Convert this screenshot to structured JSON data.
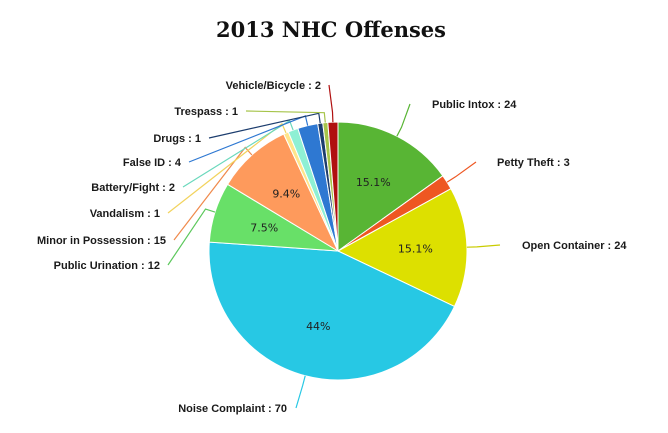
{
  "chart_data": {
    "type": "pie",
    "title": "2013 NHC Offenses",
    "slices": [
      {
        "label": "Public Intox",
        "value": 24,
        "pct_label": "15.1%",
        "color": "#58b534",
        "leader": "#58b534"
      },
      {
        "label": "Petty Theft",
        "value": 3,
        "pct_label": "",
        "color": "#ee5722",
        "leader": "#ee5722"
      },
      {
        "label": "Open Container",
        "value": 24,
        "pct_label": "15.1%",
        "color": "#dde000",
        "leader": "#c9cc00"
      },
      {
        "label": "Noise Complaint",
        "value": 70,
        "pct_label": "44%",
        "color": "#27c8e4",
        "leader": "#27c8e4"
      },
      {
        "label": "Public Urination",
        "value": 12,
        "pct_label": "7.5%",
        "color": "#68e068",
        "leader": "#5cc85c"
      },
      {
        "label": "Minor in Possession",
        "value": 15,
        "pct_label": "9.4%",
        "color": "#fe9a5c",
        "leader": "#f08a4c"
      },
      {
        "label": "Vandalism",
        "value": 1,
        "pct_label": "",
        "color": "#ffe58a",
        "leader": "#f2d35e"
      },
      {
        "label": "Battery/Fight",
        "value": 2,
        "pct_label": "",
        "color": "#8ef0d4",
        "leader": "#6ad8bc"
      },
      {
        "label": "False ID",
        "value": 4,
        "pct_label": "",
        "color": "#2e78d2",
        "leader": "#2e78d2"
      },
      {
        "label": "Drugs",
        "value": 1,
        "pct_label": "",
        "color": "#1c3d6e",
        "leader": "#1c3d6e"
      },
      {
        "label": "Trespass",
        "value": 1,
        "pct_label": "",
        "color": "#a6c44a",
        "leader": "#a6c44a"
      },
      {
        "label": "Vehicle/Bicycle",
        "value": 2,
        "pct_label": "",
        "color": "#b01010",
        "leader": "#b01010"
      }
    ]
  }
}
